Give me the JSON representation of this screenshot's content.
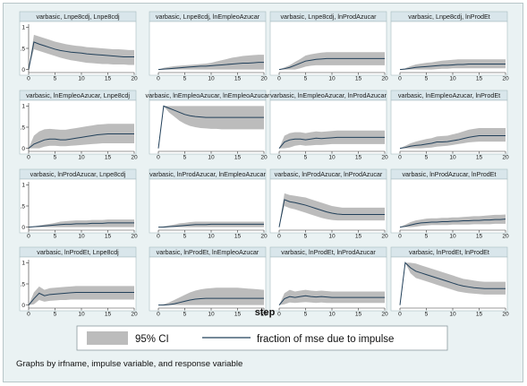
{
  "chart_data": {
    "type": "area",
    "x": [
      0,
      1,
      2,
      3,
      4,
      5,
      6,
      7,
      8,
      9,
      10,
      11,
      12,
      13,
      14,
      15,
      16,
      17,
      18,
      19,
      20
    ],
    "xticks": [
      0,
      5,
      10,
      15,
      20
    ],
    "yticks": [
      0,
      0.5,
      1
    ],
    "yticks_labels": [
      "0",
      ".5",
      "1"
    ],
    "ylim": [
      -0.05,
      1.05
    ],
    "xlim": [
      0,
      20
    ],
    "xlabel": "step",
    "note": "Graphs by irfname, impulse variable, and response variable",
    "legend": {
      "position": "bottom",
      "ci_label": "95% CI",
      "line_label": "fraction of mse due to impulse",
      "ci_color": "#bcbcbc",
      "line_color": "#22405a"
    },
    "panels": [
      {
        "title": "varbasic, Lnpe8cdj, Lnpe8cdj",
        "y": [
          0,
          0.65,
          0.6,
          0.56,
          0.52,
          0.48,
          0.45,
          0.43,
          0.41,
          0.4,
          0.39,
          0.37,
          0.36,
          0.35,
          0.34,
          0.33,
          0.32,
          0.31,
          0.3,
          0.3,
          0.3
        ],
        "lo": [
          0,
          0.48,
          0.44,
          0.4,
          0.36,
          0.32,
          0.28,
          0.25,
          0.22,
          0.2,
          0.18,
          0.16,
          0.15,
          0.14,
          0.13,
          0.13,
          0.12,
          0.12,
          0.12,
          0.11,
          0.11
        ],
        "hi": [
          0,
          0.82,
          0.78,
          0.74,
          0.7,
          0.66,
          0.63,
          0.6,
          0.58,
          0.56,
          0.55,
          0.53,
          0.52,
          0.51,
          0.5,
          0.49,
          0.48,
          0.48,
          0.47,
          0.46,
          0.46
        ]
      },
      {
        "title": "varbasic, Lnpe8cdj, lnEmpleoAzucar",
        "y": [
          0,
          0.01,
          0.02,
          0.03,
          0.04,
          0.05,
          0.06,
          0.07,
          0.08,
          0.08,
          0.09,
          0.1,
          0.11,
          0.12,
          0.13,
          0.14,
          0.15,
          0.15,
          0.16,
          0.17,
          0.17
        ],
        "lo": [
          0,
          0,
          0,
          0,
          0,
          0,
          0,
          0,
          0,
          0,
          0,
          0,
          0,
          0,
          0,
          0,
          0,
          0,
          0,
          0,
          0
        ],
        "hi": [
          0,
          0.04,
          0.06,
          0.08,
          0.09,
          0.1,
          0.11,
          0.12,
          0.13,
          0.14,
          0.16,
          0.19,
          0.22,
          0.25,
          0.28,
          0.3,
          0.32,
          0.33,
          0.34,
          0.35,
          0.35
        ]
      },
      {
        "title": "varbasic, Lnpe8cdj, lnProdAzucar",
        "y": [
          0,
          0.02,
          0.05,
          0.1,
          0.15,
          0.2,
          0.22,
          0.24,
          0.25,
          0.26,
          0.26,
          0.26,
          0.26,
          0.26,
          0.26,
          0.26,
          0.26,
          0.26,
          0.26,
          0.26,
          0.26
        ],
        "lo": [
          0,
          0,
          0,
          0,
          0.03,
          0.07,
          0.09,
          0.1,
          0.1,
          0.1,
          0.1,
          0.1,
          0.1,
          0.1,
          0.1,
          0.1,
          0.1,
          0.1,
          0.1,
          0.1,
          0.1
        ],
        "hi": [
          0,
          0.05,
          0.1,
          0.18,
          0.25,
          0.33,
          0.36,
          0.38,
          0.4,
          0.41,
          0.41,
          0.41,
          0.41,
          0.41,
          0.41,
          0.41,
          0.41,
          0.41,
          0.41,
          0.41,
          0.41
        ]
      },
      {
        "title": "varbasic, Lnpe8cdj, lnProdEt",
        "y": [
          0,
          0.01,
          0.03,
          0.05,
          0.06,
          0.07,
          0.08,
          0.09,
          0.1,
          0.1,
          0.11,
          0.12,
          0.12,
          0.13,
          0.13,
          0.13,
          0.13,
          0.13,
          0.13,
          0.13,
          0.13
        ],
        "lo": [
          0,
          0,
          0,
          0,
          0,
          0,
          0,
          0.01,
          0.02,
          0.02,
          0.03,
          0.03,
          0.03,
          0.03,
          0.03,
          0.03,
          0.03,
          0.03,
          0.03,
          0.03,
          0.03
        ],
        "hi": [
          0,
          0.03,
          0.08,
          0.12,
          0.14,
          0.16,
          0.17,
          0.19,
          0.21,
          0.22,
          0.23,
          0.24,
          0.24,
          0.24,
          0.24,
          0.24,
          0.24,
          0.24,
          0.24,
          0.24,
          0.24
        ]
      },
      {
        "title": "varbasic, lnEmpleoAzucar, Lnpe8cdj",
        "y": [
          0,
          0.1,
          0.15,
          0.2,
          0.22,
          0.22,
          0.2,
          0.2,
          0.22,
          0.24,
          0.26,
          0.28,
          0.3,
          0.32,
          0.33,
          0.34,
          0.34,
          0.34,
          0.34,
          0.34,
          0.34
        ],
        "lo": [
          0,
          0,
          0,
          0.04,
          0.06,
          0.06,
          0.05,
          0.05,
          0.06,
          0.07,
          0.08,
          0.09,
          0.1,
          0.11,
          0.12,
          0.12,
          0.12,
          0.12,
          0.12,
          0.12,
          0.12
        ],
        "hi": [
          0,
          0.3,
          0.4,
          0.45,
          0.46,
          0.45,
          0.44,
          0.44,
          0.46,
          0.48,
          0.5,
          0.52,
          0.54,
          0.56,
          0.57,
          0.58,
          0.58,
          0.58,
          0.58,
          0.58,
          0.58
        ]
      },
      {
        "title": "varbasic, lnEmpleoAzucar, lnEmpleoAzucar",
        "y": [
          0,
          1,
          0.95,
          0.9,
          0.85,
          0.8,
          0.77,
          0.75,
          0.74,
          0.73,
          0.73,
          0.73,
          0.73,
          0.73,
          0.73,
          0.73,
          0.73,
          0.73,
          0.73,
          0.73,
          0.73
        ],
        "lo": [
          0,
          1,
          0.85,
          0.75,
          0.65,
          0.58,
          0.53,
          0.5,
          0.48,
          0.47,
          0.46,
          0.46,
          0.45,
          0.45,
          0.45,
          0.45,
          0.45,
          0.45,
          0.45,
          0.45,
          0.45
        ],
        "hi": [
          0,
          1,
          1,
          1,
          1,
          1,
          1,
          1,
          1,
          1,
          1,
          1,
          1,
          1,
          1,
          1,
          1,
          1,
          1,
          1,
          1
        ]
      },
      {
        "title": "varbasic, lnEmpleoAzucar, lnProdAzucar",
        "y": [
          0,
          0.15,
          0.2,
          0.22,
          0.22,
          0.2,
          0.22,
          0.24,
          0.23,
          0.24,
          0.25,
          0.26,
          0.26,
          0.26,
          0.26,
          0.26,
          0.26,
          0.26,
          0.26,
          0.26,
          0.26
        ],
        "lo": [
          0,
          0,
          0.02,
          0.06,
          0.08,
          0.06,
          0.07,
          0.08,
          0.08,
          0.09,
          0.1,
          0.1,
          0.1,
          0.1,
          0.1,
          0.1,
          0.1,
          0.1,
          0.1,
          0.1,
          0.1
        ],
        "hi": [
          0,
          0.3,
          0.36,
          0.38,
          0.38,
          0.36,
          0.38,
          0.4,
          0.39,
          0.4,
          0.41,
          0.42,
          0.42,
          0.42,
          0.42,
          0.42,
          0.42,
          0.42,
          0.42,
          0.42,
          0.42
        ]
      },
      {
        "title": "varbasic, lnEmpleoAzucar, lnProdEt",
        "y": [
          0,
          0.02,
          0.05,
          0.07,
          0.08,
          0.1,
          0.12,
          0.15,
          0.15,
          0.16,
          0.18,
          0.2,
          0.23,
          0.26,
          0.28,
          0.3,
          0.3,
          0.3,
          0.3,
          0.3,
          0.3
        ],
        "lo": [
          0,
          0,
          0,
          0,
          0,
          0.01,
          0.02,
          0.04,
          0.05,
          0.06,
          0.08,
          0.1,
          0.12,
          0.14,
          0.15,
          0.16,
          0.16,
          0.16,
          0.16,
          0.16,
          0.16
        ],
        "hi": [
          0,
          0.06,
          0.12,
          0.16,
          0.19,
          0.22,
          0.24,
          0.28,
          0.29,
          0.3,
          0.33,
          0.36,
          0.4,
          0.44,
          0.46,
          0.48,
          0.48,
          0.48,
          0.48,
          0.48,
          0.48
        ]
      },
      {
        "title": "varbasic, lnProdAzucar, Lnpe8cdj",
        "y": [
          0,
          0.01,
          0.02,
          0.03,
          0.04,
          0.05,
          0.06,
          0.07,
          0.07,
          0.08,
          0.08,
          0.08,
          0.09,
          0.09,
          0.09,
          0.1,
          0.1,
          0.1,
          0.1,
          0.1,
          0.1
        ],
        "lo": [
          0,
          0,
          0,
          0,
          0,
          0,
          0,
          0,
          0,
          0,
          0,
          0,
          0,
          0,
          0,
          0,
          0,
          0,
          0,
          0,
          0
        ],
        "hi": [
          0,
          0.02,
          0.04,
          0.06,
          0.08,
          0.1,
          0.13,
          0.14,
          0.15,
          0.16,
          0.16,
          0.16,
          0.17,
          0.17,
          0.17,
          0.18,
          0.18,
          0.18,
          0.18,
          0.18,
          0.18
        ]
      },
      {
        "title": "varbasic, lnProdAzucar, lnEmpleoAzucar",
        "y": [
          0,
          0,
          0.01,
          0.02,
          0.03,
          0.04,
          0.05,
          0.06,
          0.06,
          0.06,
          0.07,
          0.07,
          0.07,
          0.07,
          0.07,
          0.07,
          0.07,
          0.07,
          0.07,
          0.07,
          0.07
        ],
        "lo": [
          0,
          0,
          0,
          0,
          0,
          0,
          0,
          0,
          0,
          0,
          0,
          0,
          0,
          0,
          0,
          0,
          0,
          0,
          0,
          0,
          0
        ],
        "hi": [
          0,
          0.02,
          0.04,
          0.06,
          0.09,
          0.1,
          0.12,
          0.13,
          0.13,
          0.13,
          0.13,
          0.13,
          0.13,
          0.13,
          0.13,
          0.13,
          0.13,
          0.13,
          0.13,
          0.13,
          0.13
        ]
      },
      {
        "title": "varbasic, lnProdAzucar, lnProdAzucar",
        "y": [
          0,
          0.65,
          0.6,
          0.58,
          0.55,
          0.52,
          0.48,
          0.44,
          0.4,
          0.36,
          0.33,
          0.31,
          0.3,
          0.3,
          0.3,
          0.3,
          0.3,
          0.3,
          0.3,
          0.3,
          0.3
        ],
        "lo": [
          0,
          0.5,
          0.45,
          0.42,
          0.38,
          0.34,
          0.3,
          0.26,
          0.22,
          0.19,
          0.17,
          0.16,
          0.16,
          0.16,
          0.16,
          0.16,
          0.16,
          0.16,
          0.16,
          0.16,
          0.16
        ],
        "hi": [
          0,
          0.8,
          0.76,
          0.74,
          0.72,
          0.7,
          0.66,
          0.62,
          0.58,
          0.54,
          0.5,
          0.48,
          0.46,
          0.46,
          0.46,
          0.46,
          0.46,
          0.46,
          0.46,
          0.46,
          0.46
        ]
      },
      {
        "title": "varbasic, lnProdAzucar, lnProdEt",
        "y": [
          0,
          0.02,
          0.05,
          0.08,
          0.1,
          0.11,
          0.12,
          0.12,
          0.13,
          0.13,
          0.14,
          0.14,
          0.15,
          0.15,
          0.16,
          0.16,
          0.17,
          0.17,
          0.18,
          0.18,
          0.19
        ],
        "lo": [
          0,
          0,
          0,
          0.01,
          0.03,
          0.04,
          0.05,
          0.05,
          0.05,
          0.05,
          0.06,
          0.06,
          0.06,
          0.06,
          0.07,
          0.07,
          0.07,
          0.07,
          0.08,
          0.08,
          0.08
        ],
        "hi": [
          0,
          0.06,
          0.12,
          0.16,
          0.18,
          0.2,
          0.21,
          0.21,
          0.22,
          0.22,
          0.23,
          0.23,
          0.24,
          0.25,
          0.26,
          0.26,
          0.27,
          0.28,
          0.29,
          0.29,
          0.3
        ]
      },
      {
        "title": "varbasic, lnProdEt, Lnpe8cdj",
        "y": [
          0,
          0.15,
          0.28,
          0.22,
          0.25,
          0.26,
          0.27,
          0.28,
          0.29,
          0.3,
          0.3,
          0.3,
          0.3,
          0.3,
          0.3,
          0.3,
          0.3,
          0.3,
          0.3,
          0.3,
          0.3
        ],
        "lo": [
          0,
          0.02,
          0.12,
          0.08,
          0.1,
          0.11,
          0.12,
          0.12,
          0.13,
          0.13,
          0.13,
          0.13,
          0.13,
          0.13,
          0.13,
          0.13,
          0.13,
          0.13,
          0.13,
          0.13,
          0.13
        ],
        "hi": [
          0,
          0.3,
          0.44,
          0.36,
          0.4,
          0.41,
          0.42,
          0.43,
          0.44,
          0.45,
          0.45,
          0.45,
          0.45,
          0.45,
          0.45,
          0.45,
          0.45,
          0.45,
          0.45,
          0.45,
          0.45
        ]
      },
      {
        "title": "varbasic, lnProdEt, lnEmpleoAzucar",
        "y": [
          0,
          0,
          0.01,
          0.03,
          0.06,
          0.09,
          0.12,
          0.14,
          0.15,
          0.16,
          0.16,
          0.16,
          0.16,
          0.16,
          0.16,
          0.16,
          0.16,
          0.16,
          0.16,
          0.16,
          0.16
        ],
        "lo": [
          0,
          0,
          0,
          0,
          0,
          0,
          0,
          0,
          0,
          0,
          0,
          0,
          0,
          0,
          0,
          0,
          0,
          0,
          0,
          0,
          0
        ],
        "hi": [
          0,
          0.02,
          0.06,
          0.12,
          0.18,
          0.24,
          0.3,
          0.34,
          0.37,
          0.39,
          0.4,
          0.41,
          0.41,
          0.41,
          0.41,
          0.41,
          0.4,
          0.39,
          0.38,
          0.37,
          0.36
        ]
      },
      {
        "title": "varbasic, lnProdEt, lnProdAzucar",
        "y": [
          0,
          0.15,
          0.2,
          0.18,
          0.2,
          0.22,
          0.2,
          0.19,
          0.2,
          0.19,
          0.18,
          0.18,
          0.18,
          0.18,
          0.18,
          0.18,
          0.18,
          0.18,
          0.18,
          0.18,
          0.18
        ],
        "lo": [
          0,
          0.02,
          0.06,
          0.05,
          0.06,
          0.07,
          0.06,
          0.05,
          0.06,
          0.05,
          0.05,
          0.05,
          0.05,
          0.05,
          0.05,
          0.05,
          0.05,
          0.05,
          0.05,
          0.05,
          0.05
        ],
        "hi": [
          0,
          0.28,
          0.36,
          0.32,
          0.34,
          0.36,
          0.34,
          0.33,
          0.34,
          0.33,
          0.32,
          0.32,
          0.32,
          0.32,
          0.32,
          0.32,
          0.32,
          0.32,
          0.32,
          0.32,
          0.32
        ]
      },
      {
        "title": "varbasic, lnProdEt, lnProdEt",
        "y": [
          0,
          1,
          0.88,
          0.8,
          0.76,
          0.72,
          0.68,
          0.64,
          0.6,
          0.56,
          0.52,
          0.48,
          0.45,
          0.43,
          0.41,
          0.4,
          0.39,
          0.39,
          0.39,
          0.39,
          0.39
        ],
        "lo": [
          0,
          1,
          0.75,
          0.64,
          0.6,
          0.56,
          0.52,
          0.48,
          0.44,
          0.4,
          0.36,
          0.32,
          0.3,
          0.28,
          0.27,
          0.26,
          0.25,
          0.25,
          0.25,
          0.25,
          0.25
        ],
        "hi": [
          0,
          1,
          1,
          0.98,
          0.94,
          0.9,
          0.86,
          0.82,
          0.78,
          0.74,
          0.7,
          0.66,
          0.62,
          0.6,
          0.58,
          0.56,
          0.55,
          0.55,
          0.55,
          0.55,
          0.55
        ]
      }
    ]
  }
}
